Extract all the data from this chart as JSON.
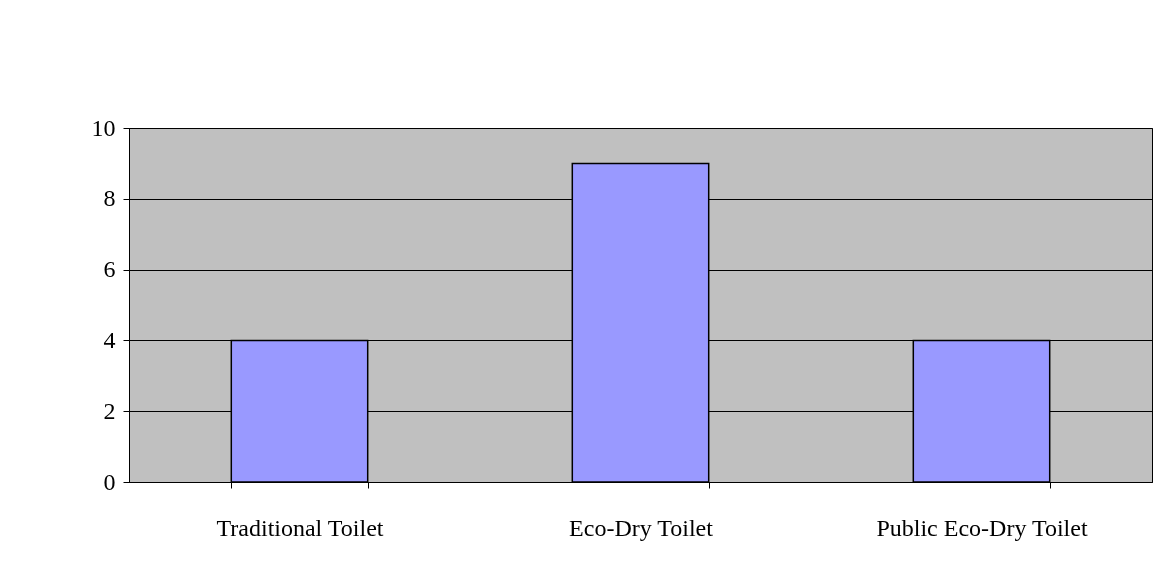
{
  "chart_data": {
    "type": "bar",
    "categories": [
      "Traditional Toilet",
      "Eco-Dry Toilet",
      "Public Eco-Dry Toilet"
    ],
    "values": [
      4,
      9,
      4
    ],
    "color": "#9999ff",
    "ylim": [
      0,
      10
    ],
    "yticks": [
      0,
      2,
      4,
      6,
      8,
      10
    ],
    "grid": "y"
  }
}
